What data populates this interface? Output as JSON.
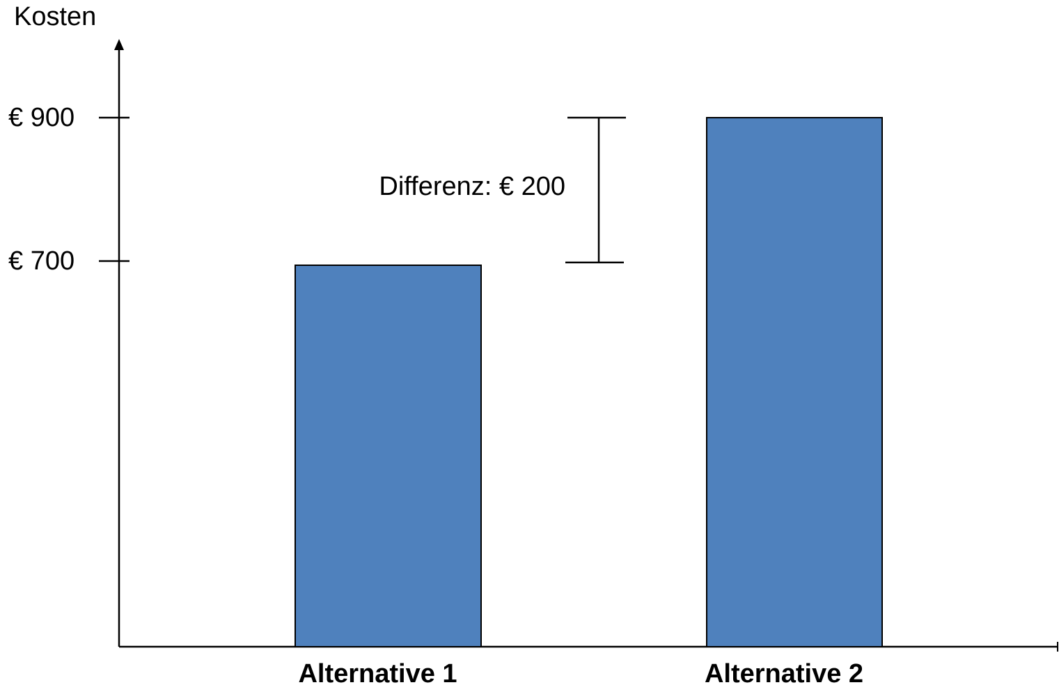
{
  "chart_data": {
    "type": "bar",
    "title": "",
    "xlabel": "",
    "ylabel": "Kosten",
    "categories": [
      "Alternative 1",
      "Alternative 2"
    ],
    "values": [
      700,
      900
    ],
    "yticks": [
      {
        "value": 700,
        "label": "€ 700"
      },
      {
        "value": 900,
        "label": "€ 900"
      }
    ],
    "annotation": {
      "text": "Differenz: € 200",
      "from": 700,
      "to": 900
    },
    "grid": false,
    "legend": "none",
    "colors": {
      "bar_fill": "#4f81bd",
      "bar_stroke": "#000000",
      "axis": "#000000"
    }
  }
}
